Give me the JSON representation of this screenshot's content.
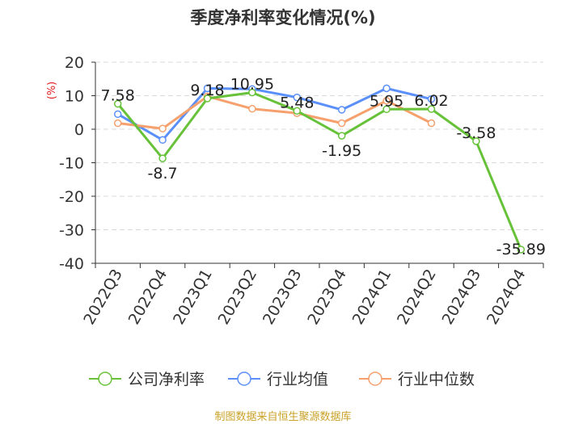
{
  "chart_data": {
    "type": "line",
    "title": "季度净利率变化情况(%)",
    "ylabel": "(%)",
    "xlabel": "",
    "categories": [
      "2022Q3",
      "2022Q4",
      "2023Q1",
      "2023Q2",
      "2023Q3",
      "2023Q4",
      "2024Q1",
      "2024Q2",
      "2024Q3",
      "2024Q4"
    ],
    "ylim": [
      -40,
      20
    ],
    "yticks": [
      20,
      10,
      0,
      -10,
      -20,
      -30,
      -40
    ],
    "grid": true,
    "legend_position": "bottom",
    "series": [
      {
        "name": "公司净利率",
        "color": "#67c23a",
        "values": [
          7.58,
          -8.7,
          9.18,
          10.95,
          5.48,
          -1.95,
          5.95,
          6.02,
          -3.58,
          -35.89
        ],
        "labels": [
          "7.58",
          "-8.7",
          "9.18",
          "10.95",
          "5.48",
          "-1.95",
          "5.95",
          "6.02",
          "-3.58",
          "-35.89"
        ]
      },
      {
        "name": "行业均值",
        "color": "#5b8ff9",
        "values": [
          4.5,
          -3.2,
          12.2,
          12.0,
          9.5,
          5.8,
          12.2,
          9.0,
          null,
          null
        ]
      },
      {
        "name": "行业中位数",
        "color": "#f6a06d",
        "values": [
          1.8,
          0.2,
          9.8,
          6.1,
          4.8,
          1.8,
          8.5,
          1.8,
          null,
          null
        ]
      }
    ]
  },
  "source": "制图数据来自恒生聚源数据库"
}
